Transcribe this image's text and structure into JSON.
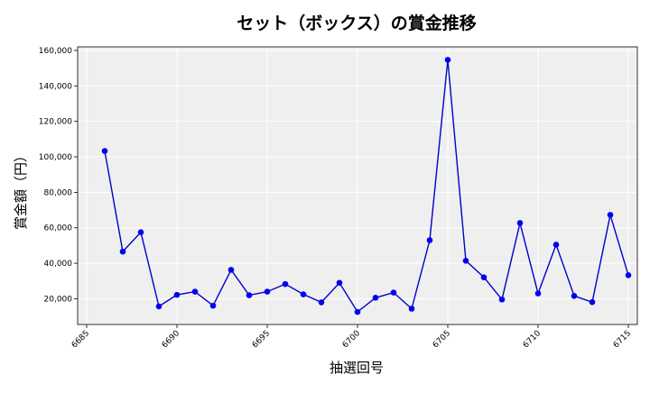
{
  "chart_data": {
    "type": "line",
    "title": "セット（ボックス）の賞金推移",
    "xlabel": "抽選回号",
    "ylabel": "賞金額（円）",
    "xlim": [
      6684.5,
      6715.5
    ],
    "ylim": [
      5500,
      162000
    ],
    "x_ticks": [
      6685,
      6690,
      6695,
      6700,
      6705,
      6710,
      6715
    ],
    "y_ticks": [
      20000,
      40000,
      60000,
      80000,
      100000,
      120000,
      140000,
      160000
    ],
    "grid": true,
    "line_color": "#0000cc",
    "marker_color": "#0000ee",
    "plot_background": "#efefef",
    "series": [
      {
        "x": [
          6686,
          6687,
          6688,
          6689,
          6690,
          6691,
          6692,
          6693,
          6694,
          6695,
          6696,
          6697,
          6698,
          6699,
          6700,
          6701,
          6702,
          6703,
          6704,
          6705,
          6706,
          6707,
          6708,
          6709,
          6710,
          6711,
          6712,
          6713,
          6714,
          6715
        ],
        "values": [
          103300,
          46600,
          57500,
          15700,
          22200,
          24000,
          16100,
          36300,
          22000,
          24000,
          28300,
          22500,
          18000,
          29000,
          12600,
          20600,
          23500,
          14400,
          53000,
          154700,
          41400,
          32100,
          19600,
          62700,
          23000,
          50500,
          21600,
          18100,
          67300,
          33300
        ]
      }
    ]
  }
}
